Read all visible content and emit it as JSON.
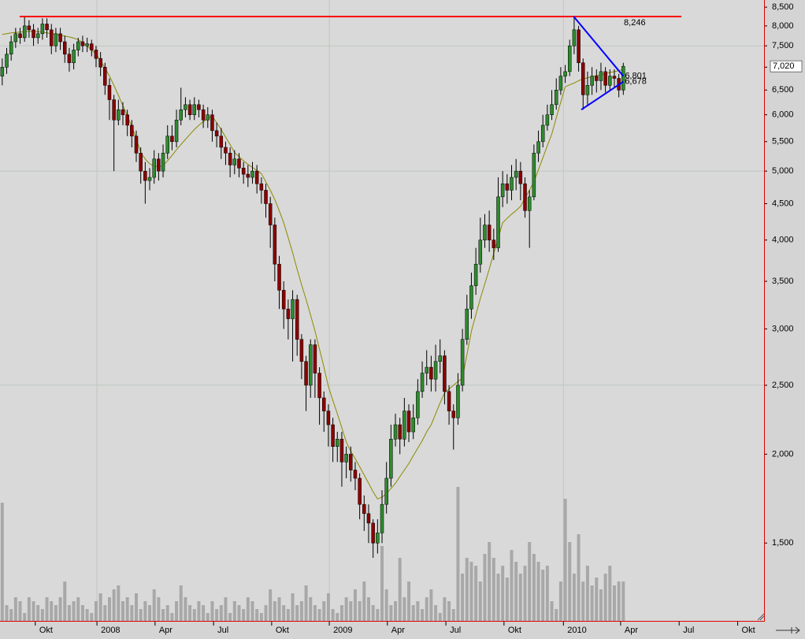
{
  "chart_data": {
    "type": "candlestick",
    "open": [
      6800,
      7000,
      7300,
      7600,
      7800,
      7700,
      8000,
      7900,
      7700,
      7800,
      8050,
      7900,
      7500,
      7800,
      7600,
      7300,
      7100,
      7400,
      7600,
      7500,
      7550,
      7400,
      7200,
      7000,
      6600,
      6300,
      5900,
      6100,
      6000,
      5800,
      5600,
      5300,
      5000,
      4850,
      4900,
      5200,
      5000,
      5300,
      5600,
      5500,
      5900,
      6100,
      6200,
      6000,
      6200,
      6100,
      5900,
      6000,
      5700,
      5600,
      5400,
      5300,
      5100,
      5200,
      5050,
      4950,
      4900,
      5000,
      4800,
      4700,
      4500,
      4200,
      3700,
      3400,
      3200,
      3100,
      3300,
      2900,
      2700,
      2500,
      2850,
      2600,
      2400,
      2300,
      2200,
      2050,
      2100,
      1950,
      2000,
      1900,
      1850,
      1700,
      1650,
      1600,
      1500,
      1550,
      1700,
      1850,
      2100,
      2200,
      2100,
      2300,
      2150,
      2250,
      2450,
      2600,
      2650,
      2550,
      2700,
      2750,
      2450,
      2300,
      2250,
      2500,
      2900,
      3200,
      3450,
      3700,
      4000,
      4200,
      4000,
      3900,
      4600,
      4800,
      4700,
      4900,
      5000,
      4800,
      4400,
      4600,
      5300,
      5500,
      5800,
      6000,
      6200,
      6500,
      6800,
      6900,
      7500,
      7900,
      7100,
      6400,
      6600,
      6800,
      6700,
      6900,
      6600,
      6800,
      6750,
      6500
    ],
    "high": [
      7200,
      7450,
      7750,
      7950,
      7950,
      8250,
      8150,
      8050,
      7950,
      8200,
      8200,
      8050,
      7950,
      7950,
      7750,
      7450,
      7550,
      7700,
      7750,
      7700,
      7650,
      7500,
      7350,
      7100,
      6750,
      6400,
      6300,
      6250,
      6100,
      5900,
      5700,
      5400,
      5150,
      5050,
      5350,
      5300,
      5450,
      5800,
      5800,
      6100,
      6550,
      6350,
      6300,
      6350,
      6300,
      6200,
      6150,
      6100,
      5850,
      5750,
      5500,
      5400,
      5350,
      5300,
      5150,
      5100,
      5150,
      5100,
      4900,
      4800,
      4600,
      4300,
      3800,
      3500,
      3300,
      3400,
      3350,
      2950,
      2750,
      2900,
      2900,
      2650,
      2450,
      2350,
      2250,
      2150,
      2150,
      2050,
      2050,
      1950,
      1880,
      1750,
      1700,
      1620,
      1620,
      1780,
      1950,
      2200,
      2280,
      2250,
      2400,
      2350,
      2350,
      2550,
      2700,
      2800,
      2750,
      2850,
      2900,
      2800,
      2500,
      2350,
      2600,
      3000,
      3350,
      3600,
      3900,
      4300,
      4350,
      4400,
      4150,
      4900,
      5000,
      4950,
      5100,
      5200,
      5150,
      4900,
      4700,
      5450,
      5700,
      6000,
      6200,
      6500,
      6750,
      7000,
      7050,
      7650,
      8246,
      8000,
      7200,
      6900,
      7000,
      6950,
      7100,
      7000,
      6950,
      6950,
      6850,
      7100
    ],
    "low": [
      6600,
      6850,
      7150,
      7450,
      7550,
      7600,
      7700,
      7500,
      7550,
      7650,
      7700,
      7300,
      7350,
      7400,
      7100,
      6900,
      6950,
      7250,
      7350,
      7350,
      7250,
      7000,
      6800,
      6400,
      5900,
      5000,
      5800,
      5800,
      5600,
      5400,
      5150,
      4800,
      4500,
      4700,
      4800,
      4850,
      4900,
      5200,
      5350,
      5400,
      5800,
      5950,
      5900,
      5900,
      5950,
      5750,
      5750,
      5500,
      5400,
      5200,
      5100,
      4900,
      4950,
      4900,
      4800,
      4750,
      4800,
      4650,
      4500,
      4300,
      3900,
      3500,
      3200,
      3000,
      2900,
      2700,
      2750,
      2550,
      2300,
      2400,
      2400,
      2200,
      2150,
      2050,
      1950,
      1950,
      1800,
      1850,
      1830,
      1780,
      1620,
      1560,
      1500,
      1430,
      1450,
      1500,
      1650,
      1800,
      2050,
      2000,
      2050,
      2080,
      2100,
      2200,
      2400,
      2500,
      2450,
      2450,
      2600,
      2350,
      2200,
      2030,
      2200,
      2450,
      2850,
      3100,
      3350,
      3600,
      3900,
      3850,
      3750,
      3850,
      4450,
      4500,
      4550,
      4700,
      4550,
      4300,
      3900,
      4550,
      5150,
      5400,
      5700,
      5900,
      6100,
      6400,
      6650,
      6800,
      7300,
      6900,
      6100,
      6200,
      6400,
      6450,
      6500,
      6450,
      6500,
      6550,
      6350,
      6400
    ],
    "close": [
      7000,
      7300,
      7600,
      7800,
      7700,
      8000,
      7900,
      7700,
      7800,
      8050,
      7900,
      7500,
      7800,
      7600,
      7300,
      7100,
      7400,
      7600,
      7500,
      7550,
      7400,
      7200,
      7000,
      6600,
      6300,
      5900,
      6100,
      6000,
      5800,
      5600,
      5300,
      5000,
      4850,
      4900,
      5200,
      5000,
      5300,
      5600,
      5500,
      5900,
      6100,
      6200,
      6000,
      6200,
      6100,
      5900,
      6000,
      5700,
      5600,
      5400,
      5300,
      5100,
      5200,
      5050,
      4950,
      4900,
      5000,
      4800,
      4700,
      4500,
      4200,
      3700,
      3400,
      3200,
      3100,
      3300,
      2900,
      2700,
      2500,
      2850,
      2600,
      2400,
      2300,
      2200,
      2050,
      2100,
      1950,
      2000,
      1900,
      1850,
      1700,
      1650,
      1600,
      1500,
      1550,
      1700,
      1850,
      2100,
      2200,
      2100,
      2300,
      2150,
      2250,
      2450,
      2600,
      2650,
      2550,
      2700,
      2750,
      2450,
      2300,
      2250,
      2500,
      2900,
      3200,
      3450,
      3700,
      4000,
      4200,
      4000,
      3900,
      4600,
      4800,
      4700,
      4900,
      5000,
      4800,
      4400,
      4600,
      5300,
      5500,
      5800,
      6000,
      6200,
      6500,
      6800,
      6900,
      7500,
      7900,
      7100,
      6400,
      6600,
      6800,
      6700,
      6900,
      6600,
      6800,
      6750,
      6500,
      7020
    ],
    "moving_average": {
      "color": "#8a8a00",
      "values": [
        7780,
        7800,
        7820,
        7830,
        7840,
        7850,
        7860,
        7860,
        7850,
        7840,
        7820,
        7800,
        7780,
        7760,
        7740,
        7720,
        7690,
        7650,
        7580,
        7500,
        7400,
        7300,
        7150,
        6980,
        6800,
        6600,
        6390,
        6180,
        5980,
        5780,
        5550,
        5310,
        5200,
        5120,
        5080,
        5070,
        5090,
        5170,
        5260,
        5360,
        5450,
        5540,
        5630,
        5720,
        5800,
        5870,
        5930,
        5970,
        5850,
        5720,
        5580,
        5450,
        5310,
        5240,
        5170,
        5110,
        5060,
        5010,
        4960,
        4830,
        4700,
        4560,
        4400,
        4230,
        4030,
        3840,
        3640,
        3460,
        3300,
        3140,
        2980,
        2810,
        2650,
        2490,
        2380,
        2280,
        2180,
        2080,
        2020,
        1970,
        1920,
        1870,
        1820,
        1770,
        1730,
        1740,
        1760,
        1790,
        1820,
        1860,
        1900,
        1940,
        1990,
        2040,
        2090,
        2150,
        2200,
        2280,
        2360,
        2440,
        2470,
        2500,
        2530,
        2560,
        2760,
        2980,
        3140,
        3310,
        3470,
        3640,
        3830,
        4030,
        4230,
        4290,
        4350,
        4400,
        4460,
        4580,
        4700,
        4830,
        5020,
        5220,
        5430,
        5640,
        5940,
        6250,
        6570,
        6610,
        6650,
        6700,
        6740,
        6760,
        6790,
        6810,
        6830,
        6850,
        6880,
        6900,
        6920,
        6950
      ]
    },
    "volume": {
      "color": "#a8a8a8",
      "lim": [
        0,
        200
      ],
      "values": [
        150,
        20,
        15,
        30,
        25,
        10,
        30,
        25,
        20,
        15,
        30,
        25,
        20,
        30,
        50,
        20,
        25,
        30,
        20,
        15,
        10,
        25,
        35,
        20,
        30,
        40,
        45,
        25,
        30,
        20,
        35,
        15,
        25,
        20,
        40,
        30,
        15,
        20,
        10,
        25,
        45,
        30,
        20,
        15,
        25,
        20,
        10,
        25,
        15,
        20,
        30,
        10,
        25,
        20,
        15,
        30,
        25,
        15,
        10,
        20,
        40,
        25,
        30,
        20,
        15,
        35,
        20,
        25,
        45,
        30,
        20,
        15,
        25,
        35,
        15,
        10,
        20,
        30,
        25,
        40,
        25,
        50,
        30,
        20,
        15,
        95,
        40,
        20,
        25,
        80,
        30,
        50,
        20,
        25,
        15,
        30,
        40,
        20,
        10,
        30,
        25,
        15,
        170,
        60,
        80,
        75,
        70,
        50,
        85,
        100,
        80,
        60,
        70,
        55,
        90,
        75,
        60,
        70,
        100,
        85,
        75,
        65,
        70,
        25,
        15,
        50,
        155,
        100,
        60,
        110,
        50,
        70,
        45,
        55,
        40,
        60,
        70,
        45,
        50,
        50
      ]
    },
    "up_color": "#2e8b2e",
    "down_color": "#8b0000",
    "log_scale": true,
    "ylim": [
      1160,
      8700
    ],
    "yticks": [
      {
        "value": 8500,
        "label": "8,500"
      },
      {
        "value": 8000,
        "label": "8,000"
      },
      {
        "value": 7500,
        "label": "7,500"
      },
      {
        "value": 7000,
        "label": "7,000"
      },
      {
        "value": 6500,
        "label": "6,500"
      },
      {
        "value": 6000,
        "label": "6,000"
      },
      {
        "value": 5500,
        "label": "5,500"
      },
      {
        "value": 5000,
        "label": "5,000"
      },
      {
        "value": 4500,
        "label": "4,500"
      },
      {
        "value": 4000,
        "label": "4,000"
      },
      {
        "value": 3500,
        "label": "3,500"
      },
      {
        "value": 3000,
        "label": "3,000"
      },
      {
        "value": 2500,
        "label": "2,500"
      },
      {
        "value": 2000,
        "label": "2,000"
      },
      {
        "value": 1500,
        "label": "1,500"
      }
    ],
    "ygrid": [
      2500,
      5000,
      7500
    ],
    "xlim": [
      -0.5,
      170.5
    ],
    "xticks": [
      {
        "value": 7.4,
        "label": "Okt"
      },
      {
        "value": 21.2,
        "label": "2008"
      },
      {
        "value": 34.2,
        "label": "Apr"
      },
      {
        "value": 47.3,
        "label": "Jul"
      },
      {
        "value": 60.3,
        "label": "Okt"
      },
      {
        "value": 73.2,
        "label": "2009"
      },
      {
        "value": 86.2,
        "label": "Apr"
      },
      {
        "value": 99.3,
        "label": "Jul"
      },
      {
        "value": 112.3,
        "label": "Okt"
      },
      {
        "value": 125.6,
        "label": "2010"
      },
      {
        "value": 138.4,
        "label": "Apr"
      },
      {
        "value": 151.5,
        "label": "Jul"
      },
      {
        "value": 164.6,
        "label": "Okt"
      }
    ],
    "last_price": {
      "value": 7020,
      "label": "7,020"
    },
    "lines": [
      {
        "color": "#ff0000",
        "x": [
          3.9,
          152
        ],
        "y": [
          8246,
          8246
        ],
        "label": {
          "value": 8246,
          "label": "8,246"
        }
      },
      {
        "color": "#0000ff",
        "x": [
          127.9,
          139
        ],
        "y": [
          8246,
          6801
        ],
        "label": {
          "value": 6801,
          "label": "6,801"
        }
      },
      {
        "color": "#0000ff",
        "x": [
          129.6,
          139
        ],
        "y": [
          6100,
          6678
        ],
        "label": {
          "value": 6678,
          "label": "6,678"
        }
      }
    ]
  }
}
